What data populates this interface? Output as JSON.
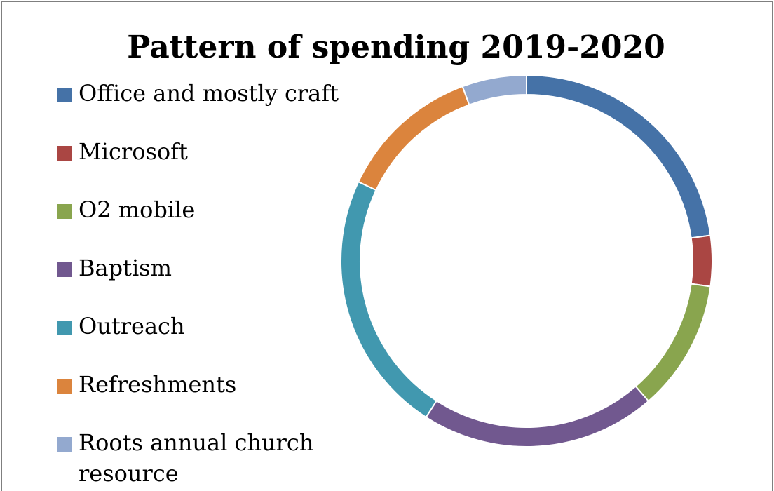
{
  "chart_data": {
    "type": "pie",
    "title": "Pattern of spending 2019-2020",
    "categories": [
      "Office and mostly craft",
      "Microsoft",
      "O2 mobile",
      "Baptism",
      "Outreach",
      "Refreshments",
      "Roots annual church resource"
    ],
    "values": [
      22.8,
      4.4,
      11.4,
      20.5,
      22.9,
      12.4,
      5.6
    ],
    "colors": [
      "#4572a7",
      "#aa4643",
      "#89a54e",
      "#71588f",
      "#4198af",
      "#db843d",
      "#93a9cf"
    ],
    "legend_position": "left",
    "style": "ring"
  }
}
